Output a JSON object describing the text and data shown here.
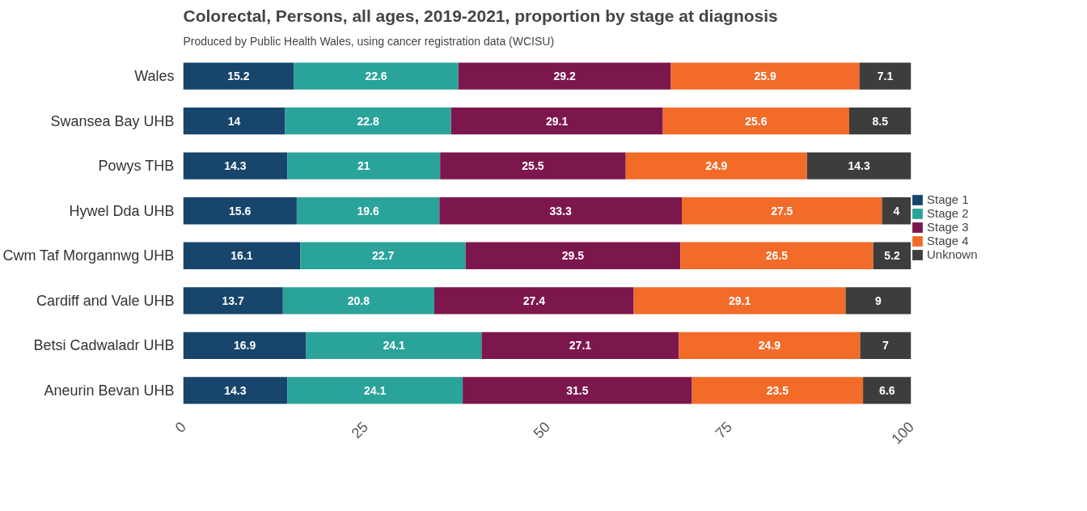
{
  "chart_data": {
    "type": "bar",
    "orientation": "horizontal",
    "stacked": true,
    "title": "Colorectal, Persons, all ages, 2019-2021, proportion by stage at diagnosis",
    "subtitle": "Produced by Public Health Wales, using cancer registration data (WCISU)",
    "categories": [
      "Wales",
      "Swansea Bay UHB",
      "Powys THB",
      "Hywel Dda UHB",
      "Cwm Taf Morgannwg UHB",
      "Cardiff and Vale UHB",
      "Betsi Cadwaladr UHB",
      "Aneurin Bevan UHB"
    ],
    "series": [
      {
        "name": "Stage 1",
        "color": "#17456b",
        "values": [
          15.2,
          14,
          14.3,
          15.6,
          16.1,
          13.7,
          16.9,
          14.3
        ]
      },
      {
        "name": "Stage 2",
        "color": "#2aa39a",
        "values": [
          22.6,
          22.8,
          21,
          19.6,
          22.7,
          20.8,
          24.1,
          24.1
        ]
      },
      {
        "name": "Stage 3",
        "color": "#7c174d",
        "values": [
          29.2,
          29.1,
          25.5,
          33.3,
          29.5,
          27.4,
          27.1,
          31.5
        ]
      },
      {
        "name": "Stage 4",
        "color": "#f26b29",
        "values": [
          25.9,
          25.6,
          24.9,
          27.5,
          26.5,
          29.1,
          24.9,
          23.5
        ]
      },
      {
        "name": "Unknown",
        "color": "#3d3d3d",
        "values": [
          7.1,
          8.5,
          14.3,
          4,
          5.2,
          9,
          7,
          6.6
        ]
      }
    ],
    "xlim": [
      0,
      100
    ],
    "xticks": [
      0,
      25,
      50,
      75,
      100
    ],
    "data_labels": true,
    "grid": false,
    "legend": "right"
  }
}
